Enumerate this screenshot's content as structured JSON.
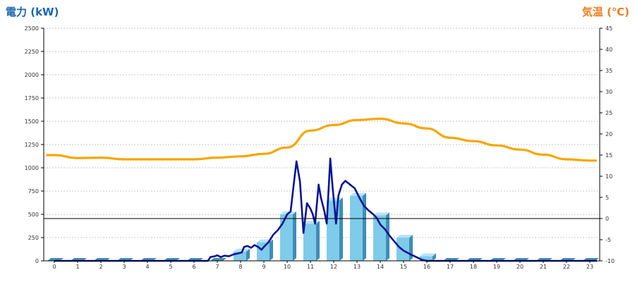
{
  "chart_data": {
    "type": "bar",
    "left_axis_title": "電力 (kW)",
    "right_axis_title": "気温 (℃)",
    "colors": {
      "left_title": "#1a66b0",
      "right_title": "#f07d1a",
      "bar_front": "#7ecbea",
      "bar_side": "#3f8db6",
      "bar_top": "#b9e3f4",
      "line_power": "#0a1496",
      "line_temp": "#f7a600",
      "grid": "#c8c8c8",
      "axis": "#000000"
    },
    "x_ticks": [
      "0",
      "1",
      "2",
      "3",
      "4",
      "5",
      "6",
      "7",
      "8",
      "9",
      "10",
      "11",
      "12",
      "13",
      "14",
      "15",
      "16",
      "17",
      "18",
      "19",
      "20",
      "21",
      "22",
      "23"
    ],
    "y_left_ticks": [
      "0",
      "250",
      "500",
      "750",
      "1000",
      "1250",
      "1500",
      "1750",
      "2000",
      "2250",
      "2500"
    ],
    "y_left_range": [
      0,
      2500
    ],
    "y_right_ticks": [
      "-10",
      "-5",
      "0",
      "5",
      "10",
      "15",
      "20",
      "25",
      "30",
      "35",
      "40",
      "45"
    ],
    "y_right_range": [
      -10,
      45
    ],
    "zero_line_temp": 0,
    "hourly_power": [
      0,
      0,
      0,
      0,
      0,
      0,
      0,
      0,
      100,
      200,
      500,
      400,
      650,
      700,
      490,
      250,
      50,
      0,
      0,
      0,
      0,
      0,
      0,
      0
    ],
    "power_line": [
      [
        0,
        0
      ],
      [
        6.6,
        0
      ],
      [
        6.7,
        40
      ],
      [
        6.9,
        50
      ],
      [
        7.0,
        60
      ],
      [
        7.15,
        40
      ],
      [
        7.3,
        55
      ],
      [
        7.5,
        50
      ],
      [
        7.7,
        70
      ],
      [
        7.9,
        80
      ],
      [
        8.05,
        90
      ],
      [
        8.15,
        150
      ],
      [
        8.3,
        160
      ],
      [
        8.45,
        140
      ],
      [
        8.6,
        170
      ],
      [
        8.75,
        150
      ],
      [
        8.9,
        120
      ],
      [
        9.0,
        150
      ],
      [
        9.2,
        200
      ],
      [
        9.4,
        280
      ],
      [
        9.6,
        330
      ],
      [
        9.8,
        400
      ],
      [
        10.0,
        500
      ],
      [
        10.15,
        530
      ],
      [
        10.3,
        860
      ],
      [
        10.4,
        1070
      ],
      [
        10.55,
        850
      ],
      [
        10.7,
        300
      ],
      [
        10.85,
        620
      ],
      [
        11.0,
        560
      ],
      [
        11.1,
        500
      ],
      [
        11.2,
        400
      ],
      [
        11.35,
        820
      ],
      [
        11.45,
        680
      ],
      [
        11.6,
        530
      ],
      [
        11.7,
        400
      ],
      [
        11.85,
        1100
      ],
      [
        11.95,
        800
      ],
      [
        12.1,
        400
      ],
      [
        12.2,
        700
      ],
      [
        12.35,
        820
      ],
      [
        12.5,
        860
      ],
      [
        12.7,
        820
      ],
      [
        12.9,
        780
      ],
      [
        13.1,
        680
      ],
      [
        13.3,
        590
      ],
      [
        13.5,
        540
      ],
      [
        13.7,
        500
      ],
      [
        13.85,
        460
      ],
      [
        14.0,
        390
      ],
      [
        14.2,
        340
      ],
      [
        14.4,
        270
      ],
      [
        14.6,
        210
      ],
      [
        14.8,
        150
      ],
      [
        15.0,
        110
      ],
      [
        15.3,
        70
      ],
      [
        15.6,
        35
      ],
      [
        15.8,
        10
      ],
      [
        16.0,
        0
      ],
      [
        23.3,
        0
      ]
    ],
    "temperature": [
      15.0,
      14.3,
      14.4,
      14.0,
      14.0,
      14.0,
      14.0,
      14.4,
      14.7,
      15.3,
      16.8,
      20.8,
      22.1,
      23.3,
      23.6,
      22.5,
      21.3,
      19.1,
      18.3,
      17.3,
      16.3,
      15.1,
      14.0,
      13.7
    ],
    "temperature_extent": [
      -0.35,
      23.3
    ]
  }
}
